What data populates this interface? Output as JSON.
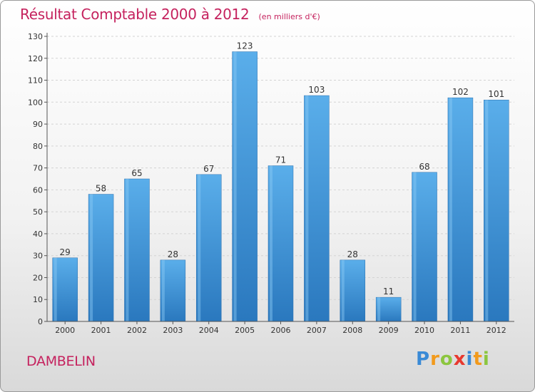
{
  "chart_data": {
    "type": "bar",
    "title": "Résultat Comptable 2000 à 2012",
    "subtitle": "(en milliers d'€)",
    "categories": [
      "2000",
      "2001",
      "2002",
      "2003",
      "2004",
      "2005",
      "2006",
      "2007",
      "2008",
      "2009",
      "2010",
      "2011",
      "2012"
    ],
    "values": [
      29,
      58,
      65,
      28,
      67,
      123,
      71,
      103,
      28,
      11,
      68,
      102,
      101
    ],
    "ylim": [
      0,
      130
    ],
    "yticks": [
      0,
      10,
      20,
      30,
      40,
      50,
      60,
      70,
      80,
      90,
      100,
      110,
      120,
      130
    ],
    "grid": true,
    "xlabel": "",
    "ylabel": "",
    "bar_color": "#3d8fd6",
    "title_color": "#c5225e"
  },
  "footer": {
    "town": "DAMBELIN",
    "logo": [
      "P",
      "r",
      "o",
      "x",
      "i",
      "t",
      "i"
    ],
    "logo_colors": [
      "#3a8ad6",
      "#f29a1c",
      "#8cc63f",
      "#e8392f",
      "#3a8ad6",
      "#f29a1c",
      "#8cc63f"
    ]
  }
}
